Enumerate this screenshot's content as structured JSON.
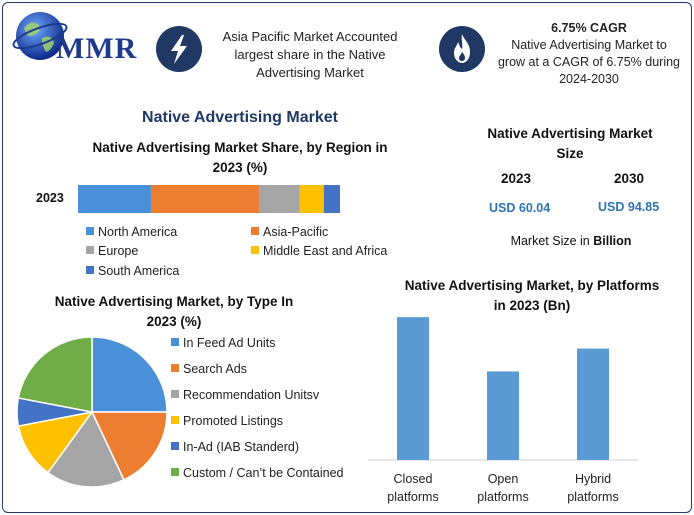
{
  "header": {
    "logo_text": "MMR",
    "callout_left": [
      "Asia Pacific Market Accounted",
      "largest share in the Native",
      "Advertising Market"
    ],
    "callout_right_title": "6.75% CAGR",
    "callout_right": [
      "Native Advertising Market to",
      "grow at a CAGR of 6.75% during",
      "2024-2030"
    ],
    "icon_left": "lightning-icon",
    "icon_right": "flame-icon"
  },
  "main_title": "Native Advertising Market",
  "market_size": {
    "title_line1": "Native Advertising Market",
    "title_line2": "Size",
    "year1": "2023",
    "year2": "2030",
    "value1": "USD 60.04",
    "value2": "USD 94.85",
    "note_prefix": "Market Size in ",
    "note_unit": "Billion"
  },
  "chart_data": [
    {
      "type": "bar",
      "orientation": "horizontal-stacked",
      "title": "Native Advertising Market Share, by Region in 2023 (%)",
      "title_line1": "Native Advertising Market Share, by Region in",
      "title_line2": "2023 (%)",
      "categories": [
        "2023"
      ],
      "series": [
        {
          "name": "North America",
          "values": [
            27
          ],
          "color": "#4a90d9"
        },
        {
          "name": "Asia-Pacific",
          "values": [
            40
          ],
          "color": "#ed7d31"
        },
        {
          "name": "Europe",
          "values": [
            15
          ],
          "color": "#a5a5a5"
        },
        {
          "name": "Middle East and Africa",
          "values": [
            9
          ],
          "color": "#ffc000"
        },
        {
          "name": "South America",
          "values": [
            6
          ],
          "color": "#4472c4"
        }
      ],
      "legend": "bottom"
    },
    {
      "type": "pie",
      "title": "Native Advertising Market, by Type In 2023 (%)",
      "title_line1": "Native Advertising Market, by Type In",
      "title_line2": "2023 (%)",
      "labels": [
        "In Feed Ad Units",
        "Search Ads",
        "Recommendation Unitsv",
        "Promoted Listings",
        "In-Ad (IAB Standerd)",
        "Custom / Can’t be Contained"
      ],
      "values": [
        25,
        18,
        17,
        12,
        6,
        22
      ],
      "colors": [
        "#4a90d9",
        "#ed7d31",
        "#a5a5a5",
        "#ffc000",
        "#4472c4",
        "#70ad47"
      ],
      "legend": "right"
    },
    {
      "type": "bar",
      "title": "Native Advertising Market, by Platforms in 2023 (Bn)",
      "title_line1": "Native Advertising Market, by Platforms",
      "title_line2": "in 2023 (Bn)",
      "categories": [
        [
          "Closed",
          "platforms"
        ],
        [
          "Open",
          "platforms"
        ],
        [
          "Hybrid",
          "platforms"
        ]
      ],
      "values": [
        25.0,
        15.5,
        19.5
      ],
      "ylim": [
        0,
        28
      ],
      "color": "#5b9bd5"
    }
  ]
}
